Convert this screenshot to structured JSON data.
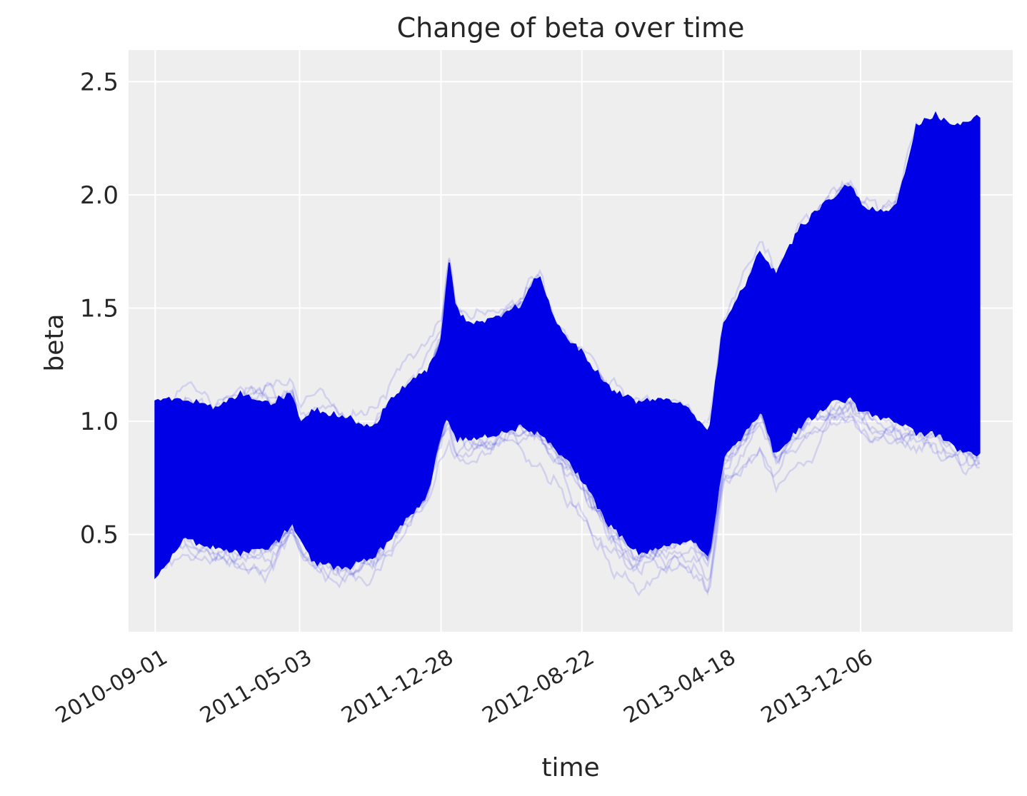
{
  "chart_data": {
    "type": "line",
    "title": "Change of beta over time",
    "xlabel": "time",
    "ylabel": "beta",
    "x_tick_labels": [
      "2010-09-01",
      "2011-05-03",
      "2011-12-28",
      "2012-08-22",
      "2013-04-18",
      "2013-12-06"
    ],
    "y_tick_labels": [
      "0.5",
      "1.0",
      "1.5",
      "2.0",
      "2.5"
    ],
    "y_ticks": [
      0.5,
      1.0,
      1.5,
      2.0,
      2.5
    ],
    "xlim": [
      "2010-07-18",
      "2014-08-20"
    ],
    "ylim": [
      0.07,
      2.64
    ],
    "x_end": "2014-06-25",
    "grid": true,
    "colors": {
      "line": "#0000e6",
      "background": "#eeeeee",
      "grid": "#ffffff"
    },
    "envelope": {
      "x": [
        "2010-09-01",
        "2010-10-20",
        "2010-12-10",
        "2011-01-25",
        "2011-03-15",
        "2011-04-20",
        "2011-05-03",
        "2011-05-25",
        "2011-07-15",
        "2011-09-05",
        "2011-10-01",
        "2011-10-25",
        "2011-12-05",
        "2011-12-28",
        "2012-01-10",
        "2012-01-22",
        "2012-02-15",
        "2012-04-01",
        "2012-05-15",
        "2012-06-10",
        "2012-07-10",
        "2012-08-22",
        "2012-10-05",
        "2012-11-25",
        "2013-01-10",
        "2013-02-20",
        "2013-03-25",
        "2013-04-18",
        "2013-05-25",
        "2013-06-20",
        "2013-07-15",
        "2013-08-25",
        "2013-10-15",
        "2013-11-20",
        "2013-12-06",
        "2014-01-10",
        "2014-02-05",
        "2014-03-10",
        "2014-04-10",
        "2014-05-20",
        "2014-06-25"
      ],
      "p_high": [
        1.1,
        1.1,
        1.05,
        1.12,
        1.08,
        1.12,
        1.0,
        1.05,
        1.02,
        0.97,
        1.08,
        1.15,
        1.22,
        1.35,
        1.7,
        1.5,
        1.42,
        1.45,
        1.52,
        1.65,
        1.42,
        1.3,
        1.15,
        1.08,
        1.1,
        1.05,
        0.95,
        1.42,
        1.6,
        1.75,
        1.65,
        1.85,
        1.98,
        2.05,
        1.95,
        1.92,
        1.95,
        2.3,
        2.35,
        2.3,
        2.35
      ],
      "p_low": [
        0.3,
        0.48,
        0.45,
        0.42,
        0.44,
        0.55,
        0.48,
        0.38,
        0.35,
        0.4,
        0.48,
        0.55,
        0.68,
        0.95,
        1.02,
        0.92,
        0.93,
        0.95,
        0.98,
        0.95,
        0.88,
        0.75,
        0.55,
        0.42,
        0.45,
        0.48,
        0.4,
        0.85,
        0.95,
        1.05,
        0.85,
        0.98,
        1.08,
        1.1,
        1.05,
        1.02,
        1.0,
        0.95,
        0.95,
        0.88,
        0.85
      ]
    }
  }
}
